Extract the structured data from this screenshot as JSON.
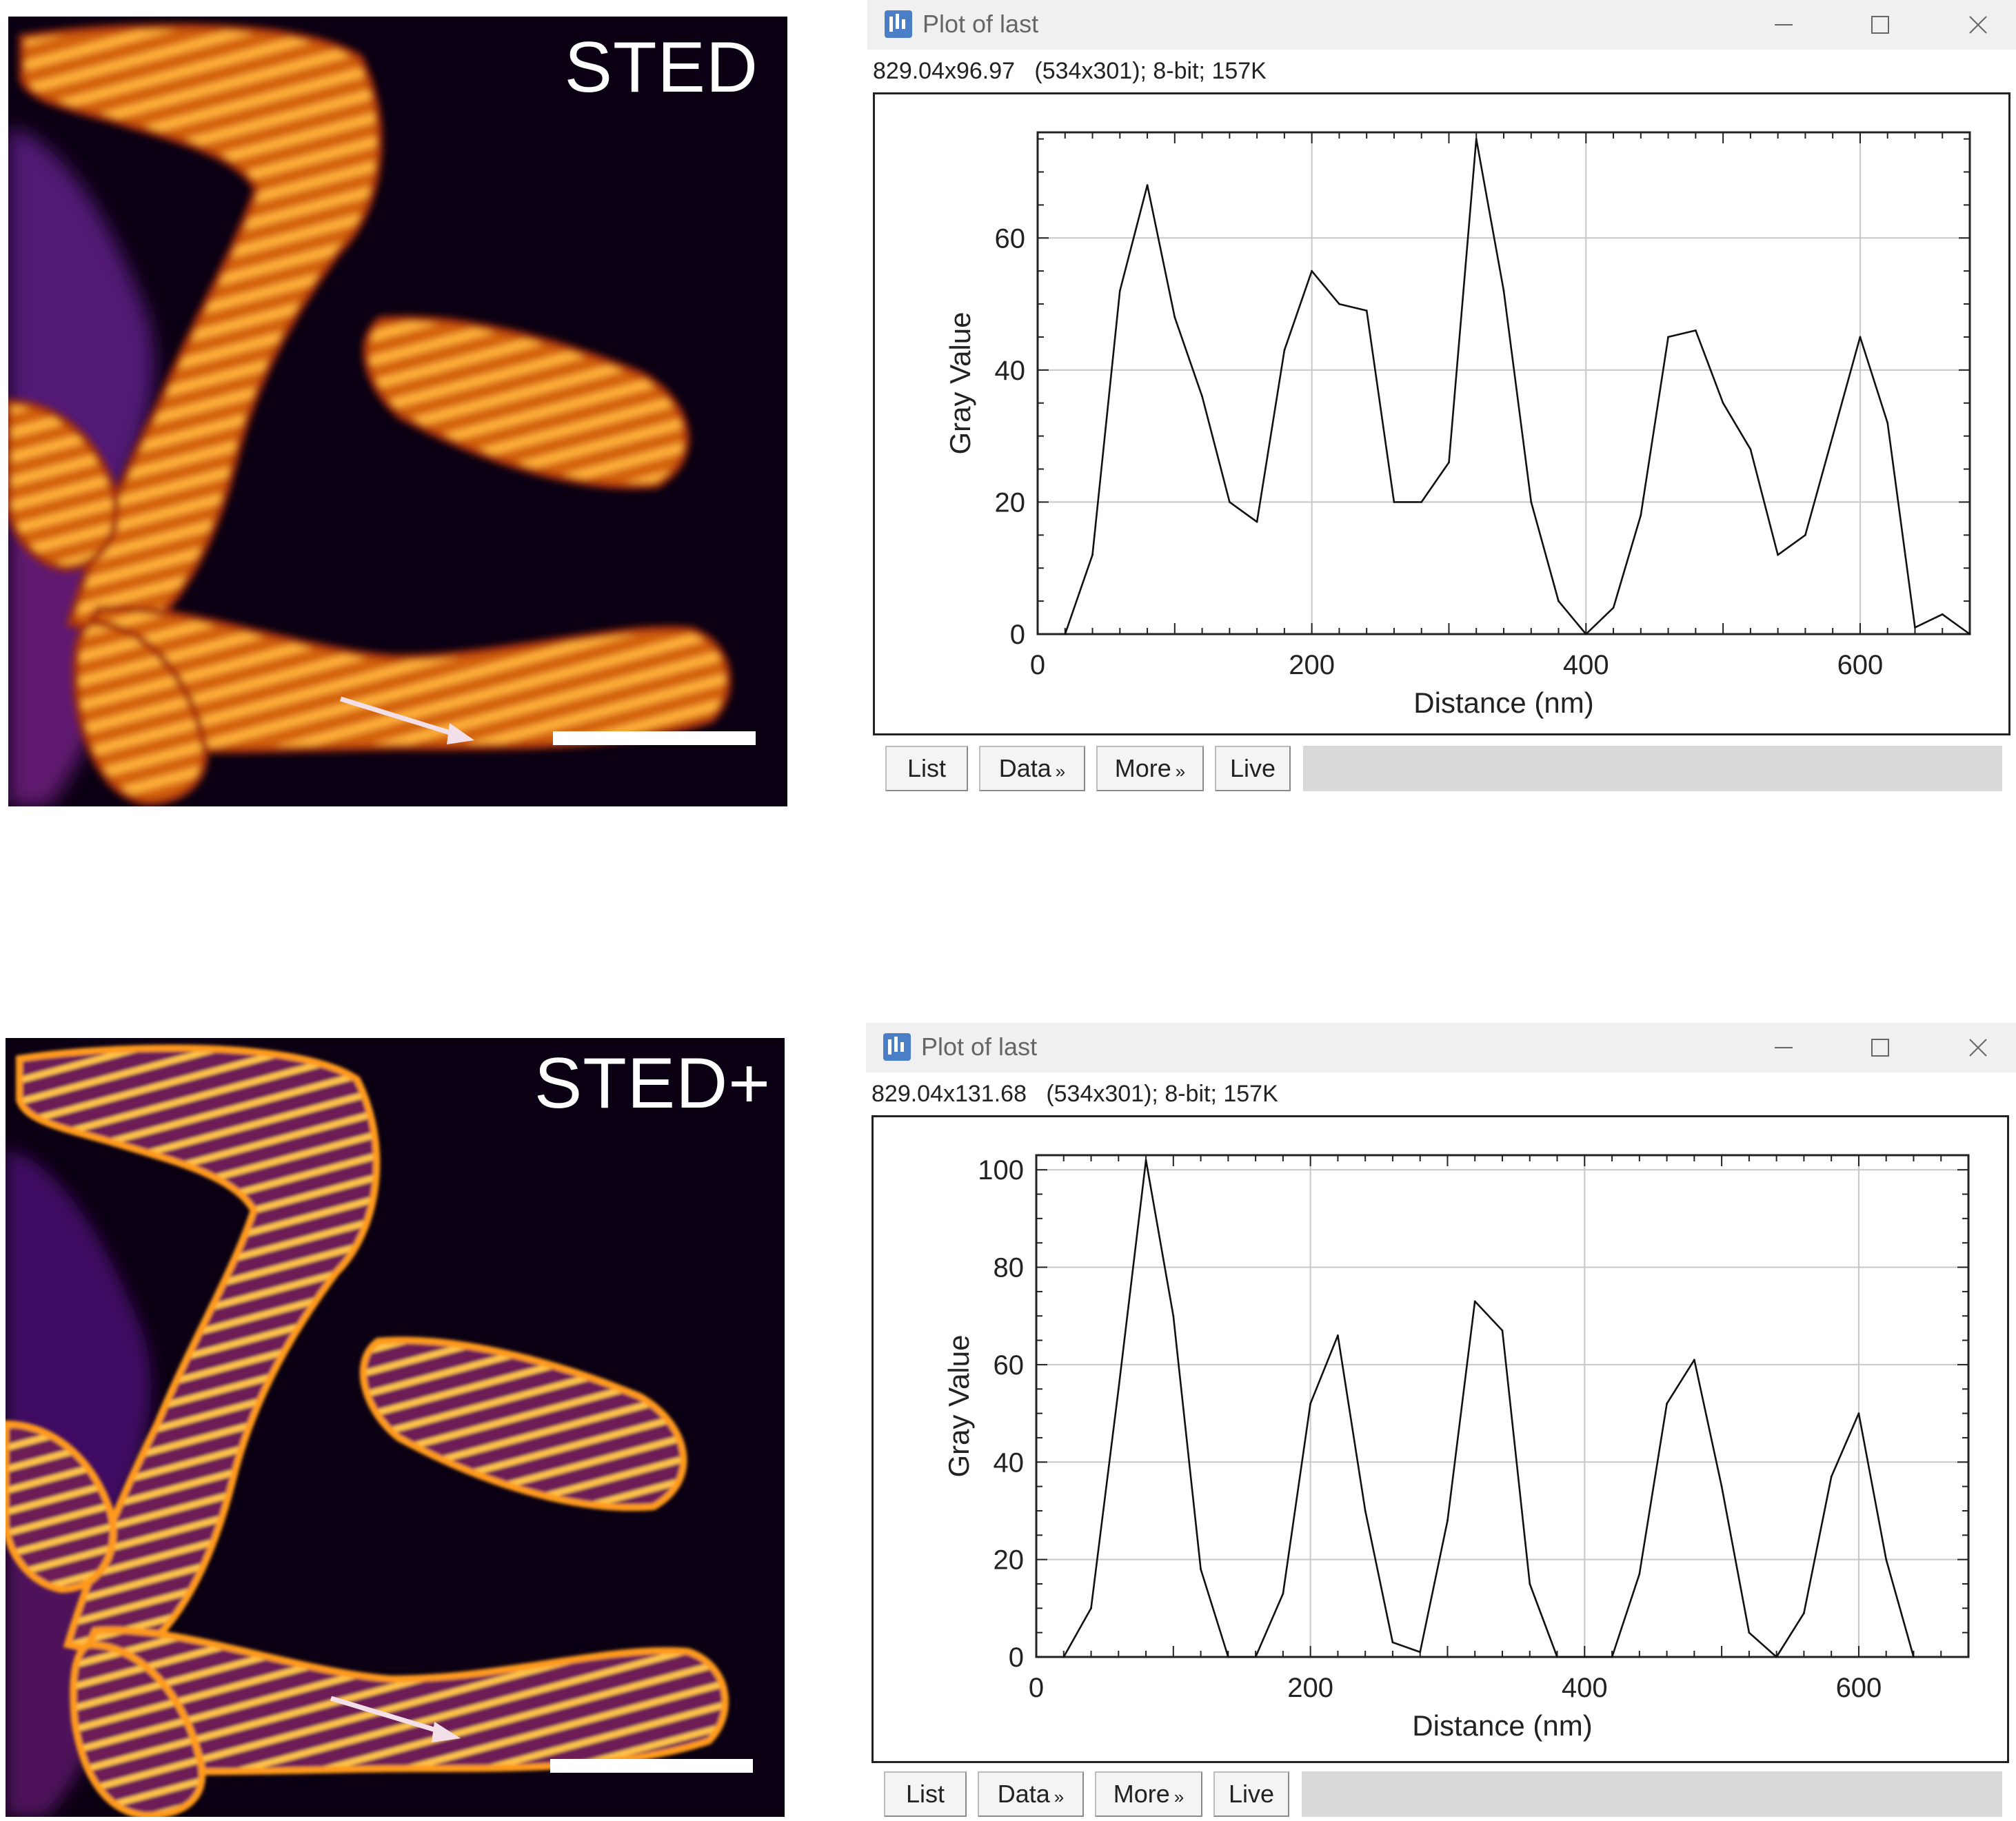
{
  "panels": [
    {
      "image_label": "STED",
      "window": {
        "title": "Plot of last",
        "info": "829.04x96.97   (534x301); 8-bit; 157K",
        "buttons": {
          "list": "List",
          "data": "Data",
          "more": "More",
          "live": "Live"
        },
        "chevron": "»"
      },
      "chart_data": {
        "type": "line",
        "xlabel": "Distance (nm)",
        "ylabel": "Gray Value",
        "xlim": [
          0,
          680
        ],
        "ylim": [
          0,
          76
        ],
        "xticks": [
          0,
          200,
          400,
          600
        ],
        "yticks": [
          0,
          20,
          40,
          60
        ],
        "x": [
          20,
          40,
          60,
          80,
          100,
          120,
          140,
          160,
          180,
          200,
          220,
          240,
          260,
          280,
          300,
          320,
          340,
          360,
          380,
          400,
          420,
          440,
          460,
          480,
          500,
          520,
          540,
          560,
          580,
          600,
          620,
          640,
          660,
          680
        ],
        "y": [
          0,
          12,
          52,
          68,
          48,
          36,
          20,
          17,
          43,
          55,
          50,
          49,
          20,
          20,
          26,
          75,
          52,
          20,
          5,
          0,
          4,
          18,
          45,
          46,
          35,
          28,
          12,
          15,
          30,
          45,
          32,
          1,
          3,
          0
        ]
      }
    },
    {
      "image_label": "STED+",
      "window": {
        "title": "Plot of last",
        "info": "829.04x131.68   (534x301); 8-bit; 157K",
        "buttons": {
          "list": "List",
          "data": "Data",
          "more": "More",
          "live": "Live"
        },
        "chevron": "»"
      },
      "chart_data": {
        "type": "line",
        "xlabel": "Distance (nm)",
        "ylabel": "Gray Value",
        "xlim": [
          0,
          680
        ],
        "ylim": [
          0,
          103
        ],
        "xticks": [
          0,
          200,
          400,
          600
        ],
        "yticks": [
          0,
          20,
          40,
          60,
          80,
          100
        ],
        "x": [
          20,
          40,
          60,
          80,
          100,
          120,
          140,
          160,
          180,
          200,
          220,
          240,
          260,
          280,
          300,
          320,
          340,
          360,
          380,
          400,
          420,
          440,
          460,
          480,
          500,
          520,
          540,
          560,
          580,
          600,
          620,
          640
        ],
        "y": [
          0,
          10,
          55,
          102,
          70,
          18,
          0,
          0,
          13,
          52,
          66,
          30,
          3,
          1,
          28,
          73,
          67,
          15,
          0,
          0,
          0,
          17,
          52,
          61,
          35,
          5,
          0,
          9,
          37,
          50,
          20,
          0
        ]
      }
    }
  ],
  "colors": {
    "window_bg": "#f0f0f0",
    "image_bg": "#0b0013",
    "stripe": "#ff9a1f"
  }
}
